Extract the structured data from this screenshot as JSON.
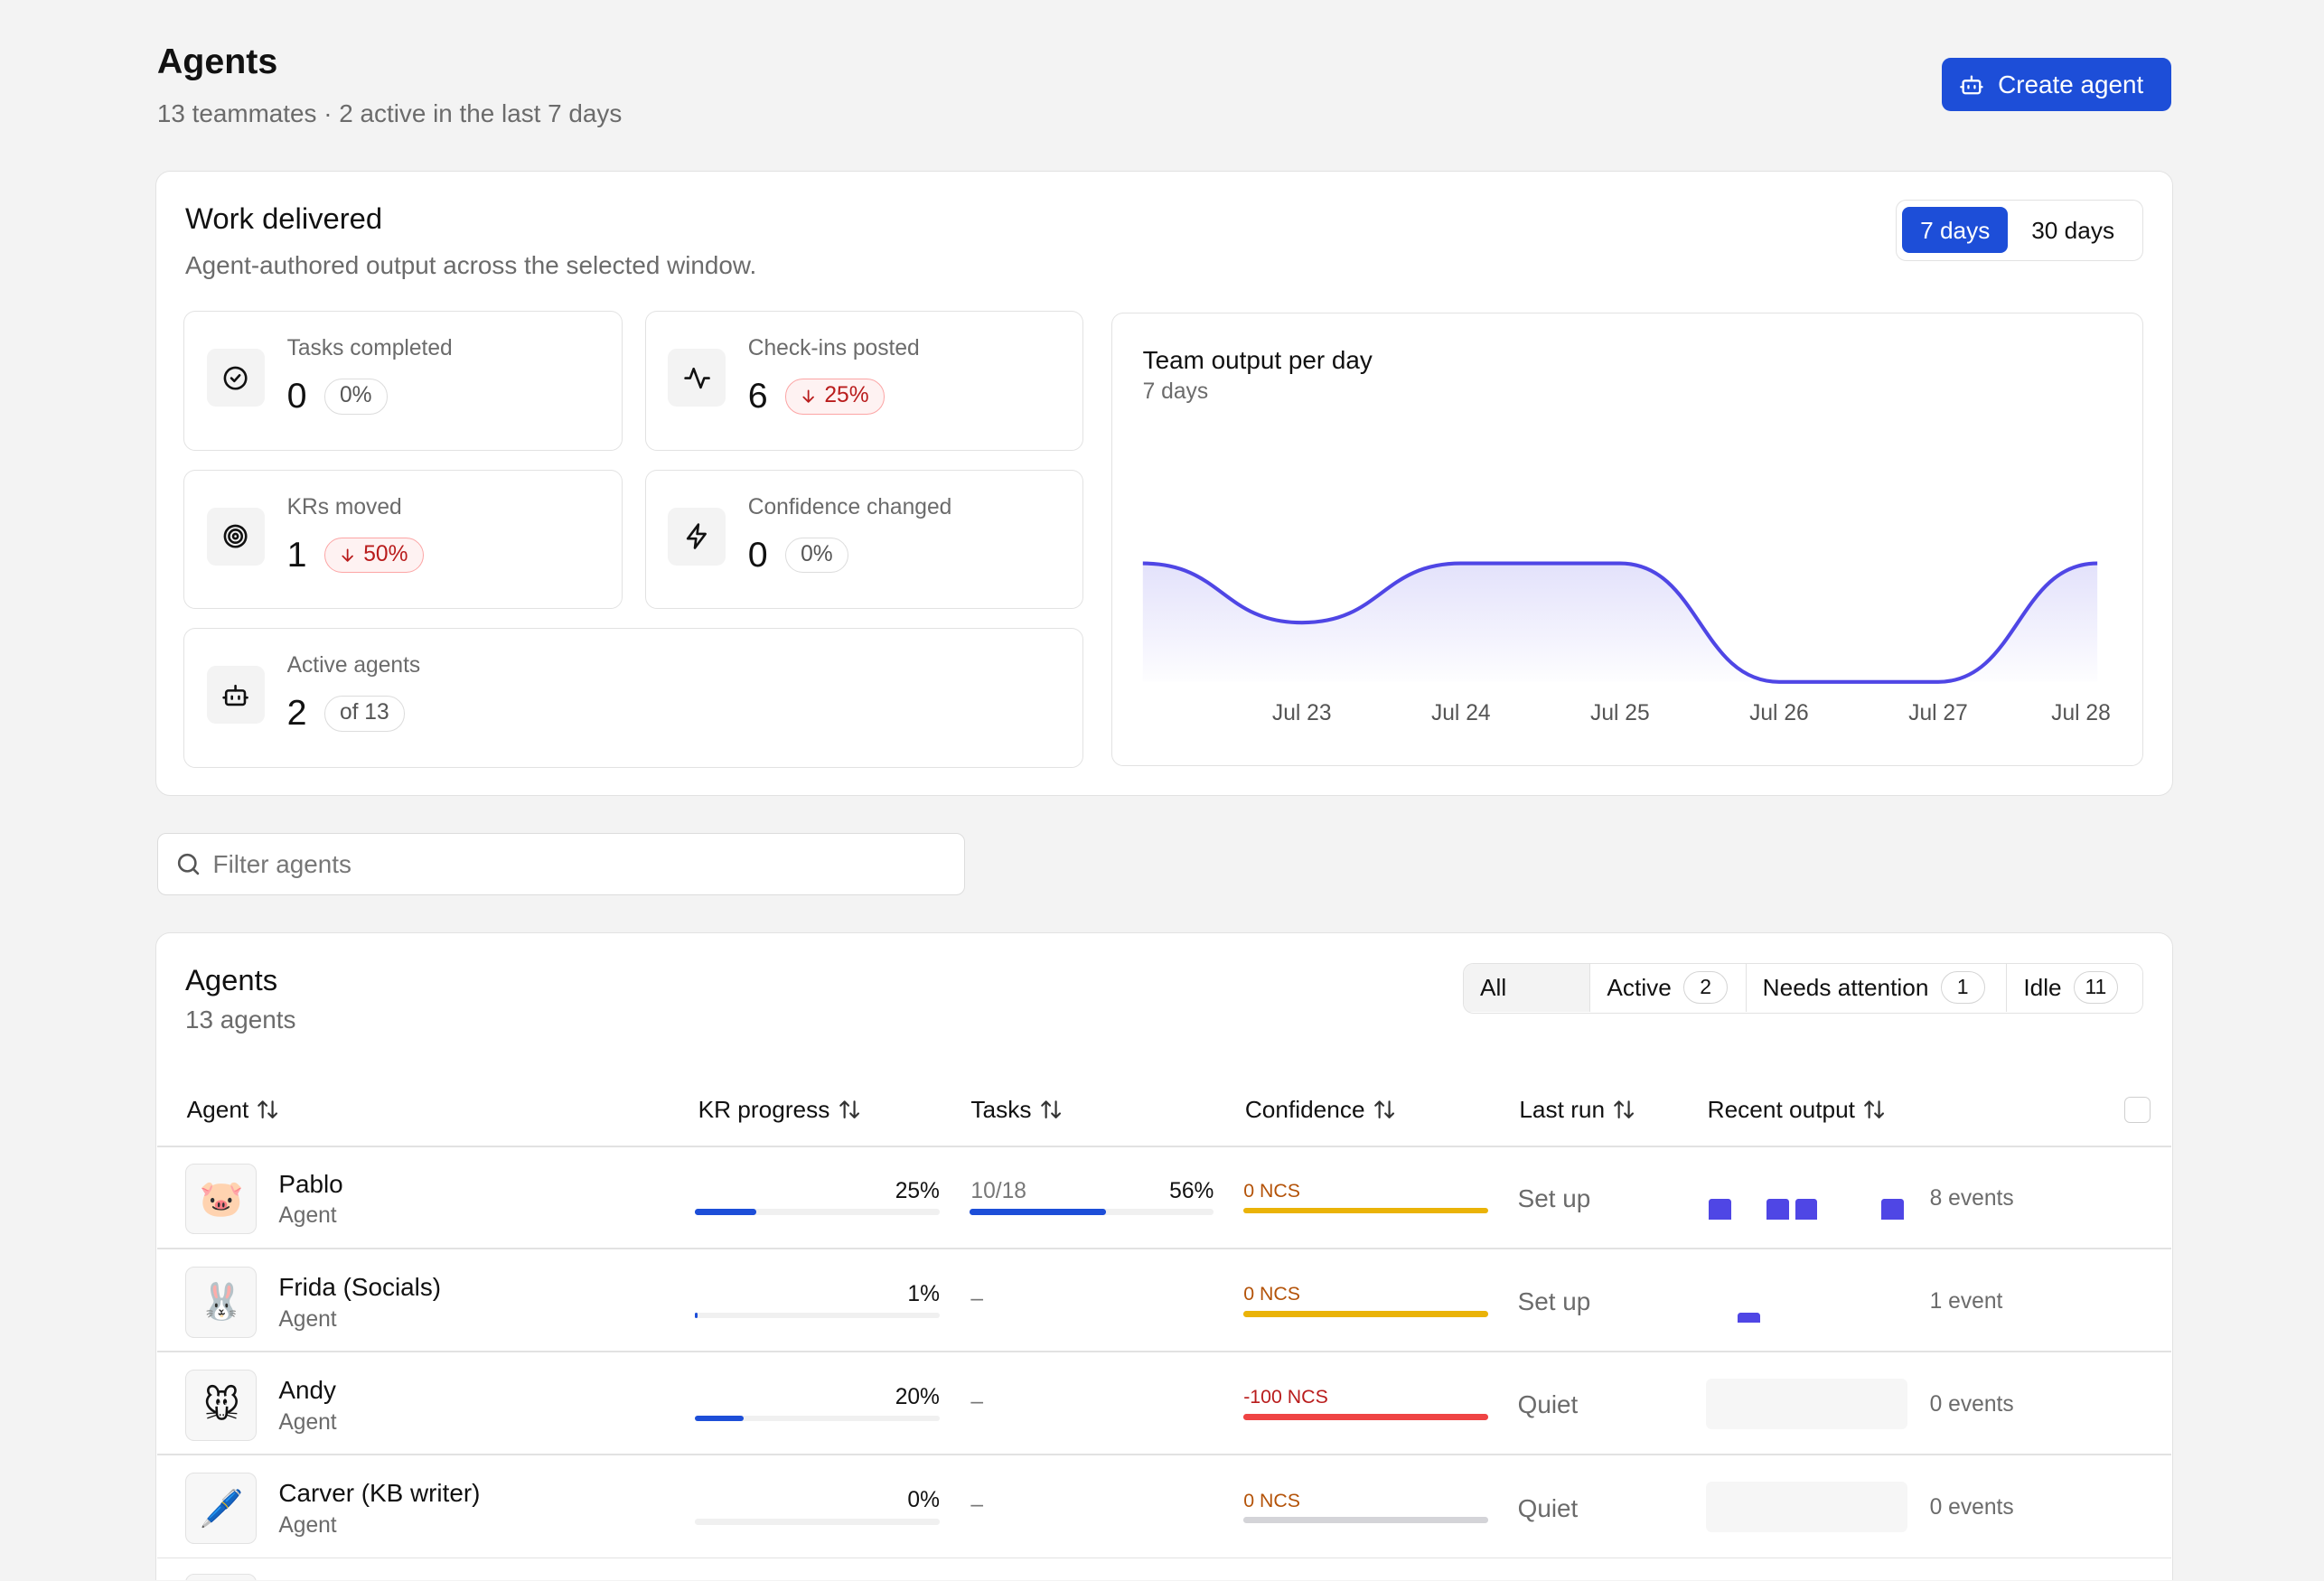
{
  "header": {
    "title": "Agents",
    "subtitle": "13 teammates · 2 active in the last 7 days",
    "create_button": "Create agent"
  },
  "work_delivered": {
    "title": "Work delivered",
    "subtitle": "Agent-authored output across the selected window.",
    "ranges": [
      "7 days",
      "30 days"
    ],
    "selected_range": 0,
    "stats": [
      {
        "label": "Tasks completed",
        "value": 0,
        "badge": "0%",
        "trend": "flat"
      },
      {
        "label": "Check-ins posted",
        "value": 6,
        "badge": "25%",
        "trend": "down"
      },
      {
        "label": "KRs moved",
        "value": 1,
        "badge": "50%",
        "trend": "down"
      },
      {
        "label": "Confidence changed",
        "value": 0,
        "badge": "0%",
        "trend": "flat"
      },
      {
        "label": "Active agents",
        "value": 2,
        "badge": "of 13",
        "trend": "flat"
      }
    ]
  },
  "chart_data": {
    "type": "line",
    "title": "Team output per day",
    "subtitle": "7 days",
    "categories": [
      null,
      "Jul 23",
      "Jul 24",
      "Jul 25",
      "Jul 26",
      "Jul 27",
      "Jul 28"
    ],
    "values": [
      2,
      1,
      2,
      2,
      0,
      0,
      2
    ],
    "color": "#4f46e5"
  },
  "filter": {
    "placeholder": "Filter agents"
  },
  "agents": {
    "title": "Agents",
    "subtitle": "13 agents",
    "tabs": [
      {
        "label": "All"
      },
      {
        "label": "Active",
        "count": 2
      },
      {
        "label": "Needs attention",
        "count": 1
      },
      {
        "label": "Idle",
        "count": 11
      }
    ],
    "selected_tab": 0,
    "columns": [
      "Agent",
      "KR progress",
      "Tasks",
      "Confidence",
      "Last run",
      "Recent output"
    ],
    "rows": [
      {
        "avatar": "🐷",
        "name": "Pablo",
        "role": "Agent",
        "kr_progress": {
          "value": 25,
          "label": "25%"
        },
        "tasks": "10/18",
        "task_progress": {
          "value": 56,
          "label": "56%"
        },
        "confidence": "0 NCS",
        "confidence_text_color": "#b45309",
        "confidence_bar_color": "#eab308",
        "last_run": "Set up",
        "recent_output": [
          2,
          0,
          2,
          2,
          0,
          0,
          2
        ],
        "events": "8 events"
      },
      {
        "avatar": "🐰",
        "name": "Frida (Socials)",
        "role": "Agent",
        "kr_progress": {
          "value": 1,
          "label": "1%"
        },
        "tasks": "–",
        "confidence": "0 NCS",
        "confidence_text_color": "#b45309",
        "confidence_bar_color": "#eab308",
        "last_run": "Set up",
        "recent_output": [
          0,
          1,
          0,
          0,
          0,
          0,
          0
        ],
        "events": "1 event"
      },
      {
        "avatar": "🐭",
        "name": "Andy",
        "role": "Agent",
        "kr_progress": {
          "value": 20,
          "label": "20%"
        },
        "tasks": "–",
        "confidence": "-100 NCS",
        "confidence_text_color": "#b91c1c",
        "confidence_bar_color": "#ef4444",
        "last_run": "Quiet",
        "recent_output": [
          0,
          0,
          0,
          0,
          0,
          0,
          0
        ],
        "events": "0 events"
      },
      {
        "avatar": "🖊️",
        "name": "Carver (KB writer)",
        "role": "Agent",
        "kr_progress": {
          "value": 0,
          "label": "0%"
        },
        "tasks": "–",
        "confidence": "0 NCS",
        "confidence_text_color": "#b45309",
        "confidence_bar_color": "#d4d4d8",
        "last_run": "Quiet",
        "recent_output": [
          0,
          0,
          0,
          0,
          0,
          0,
          0
        ],
        "events": "0 events"
      }
    ]
  }
}
